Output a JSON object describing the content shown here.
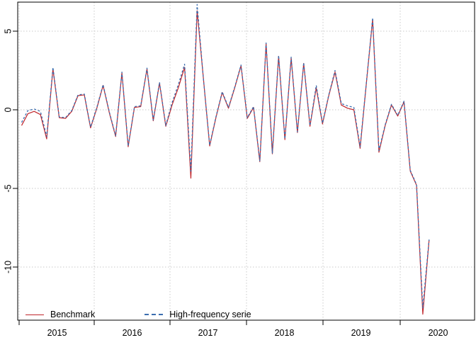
{
  "chart_data": {
    "type": "line",
    "title": "",
    "xlabel": "",
    "ylabel": "",
    "x_unit": "monthly, Jan 2015 to Jun 2020",
    "x_tick_labels": [
      "2015",
      "2016",
      "2017",
      "2018",
      "2019",
      "2020"
    ],
    "y_ticks": [
      5,
      0,
      -5,
      -10
    ],
    "y_tick_labels": [
      "5",
      "0",
      "-5",
      "-10"
    ],
    "ylim": [
      -13.4,
      6.9
    ],
    "grid": "dotted gray gridlines at all x and y ticks",
    "legend_position": "inside plot, bottom-left",
    "frame": "full box around plot",
    "colors": {
      "benchmark": "#c0262c",
      "high_frequency": "#3c6eaf",
      "grid": "#c9c9c9",
      "axis": "#000000",
      "background": "#ffffff"
    },
    "series": [
      {
        "name": "Benchmark",
        "color": "#c0262c",
        "style": "solid",
        "values": [
          -1.0,
          -0.25,
          -0.1,
          -0.3,
          -1.85,
          2.6,
          -0.5,
          -0.55,
          -0.1,
          0.9,
          0.95,
          -1.15,
          0.1,
          1.55,
          -0.2,
          -1.7,
          2.35,
          -2.35,
          0.15,
          0.2,
          2.6,
          -0.7,
          1.7,
          -1.05,
          0.3,
          1.4,
          2.7,
          -4.35,
          6.3,
          2.0,
          -2.3,
          -0.5,
          1.1,
          0.1,
          1.4,
          2.8,
          -0.55,
          0.15,
          -3.3,
          4.2,
          -2.8,
          3.4,
          -1.9,
          3.3,
          -1.45,
          2.95,
          -1.05,
          1.4,
          -0.9,
          0.9,
          2.4,
          0.3,
          0.1,
          0.0,
          -2.45,
          1.7,
          5.75,
          -2.7,
          -1.0,
          0.3,
          -0.4,
          0.5,
          -3.9,
          -4.8,
          -13.0,
          -8.3
        ]
      },
      {
        "name": "High-frequency serie",
        "color": "#3c6eaf",
        "style": "dashed",
        "values": [
          -0.8,
          -0.05,
          0.05,
          -0.1,
          -1.7,
          2.7,
          -0.45,
          -0.5,
          -0.05,
          0.95,
          1.0,
          -1.1,
          0.15,
          1.6,
          -0.15,
          -1.65,
          2.4,
          -2.3,
          0.2,
          0.25,
          2.65,
          -0.65,
          1.75,
          -1.0,
          0.45,
          1.6,
          2.9,
          -3.9,
          6.7,
          2.0,
          -2.25,
          -0.45,
          1.15,
          0.15,
          1.45,
          2.85,
          -0.5,
          0.2,
          -3.25,
          4.25,
          -2.75,
          3.45,
          -1.85,
          3.35,
          -1.4,
          3.0,
          -1.0,
          1.55,
          -0.85,
          0.95,
          2.5,
          0.4,
          0.25,
          0.15,
          -2.35,
          1.75,
          5.85,
          -2.6,
          -0.95,
          0.35,
          -0.35,
          0.55,
          -3.85,
          -4.75,
          -12.6,
          -8.25
        ]
      }
    ]
  },
  "legend": {
    "items": [
      {
        "label": "Benchmark"
      },
      {
        "label": "High-frequency serie"
      }
    ]
  }
}
